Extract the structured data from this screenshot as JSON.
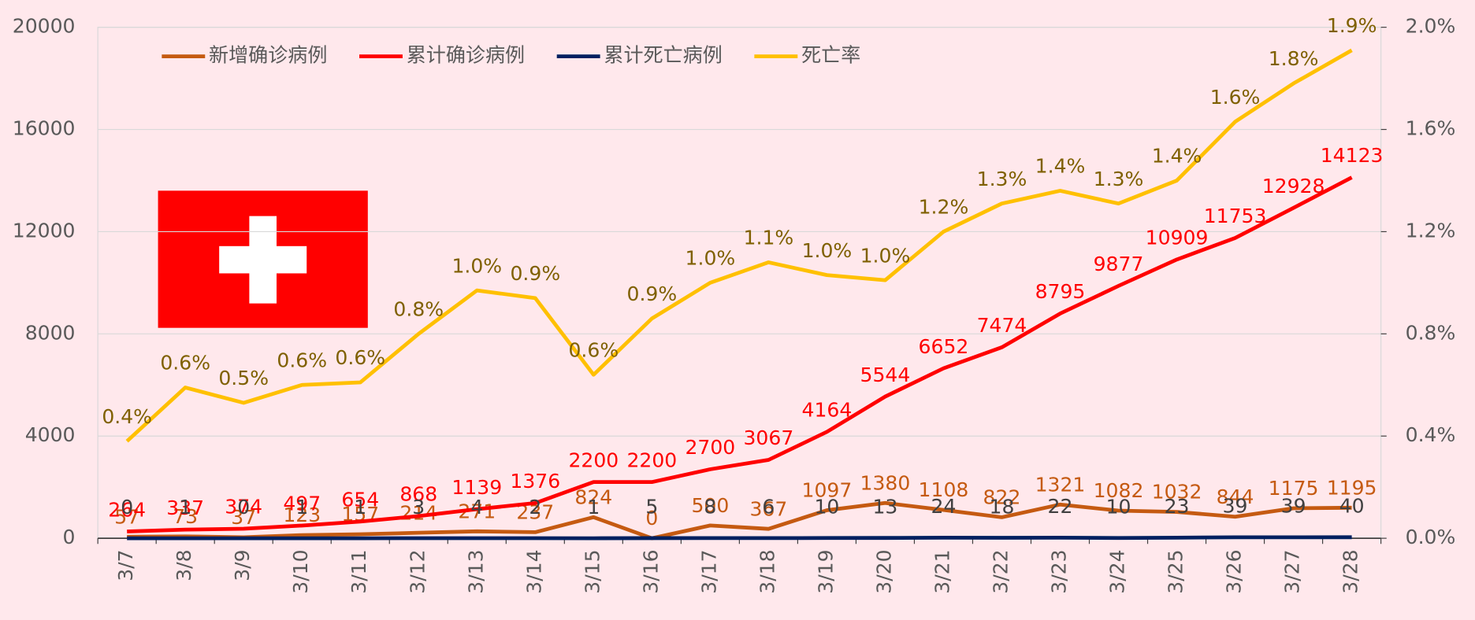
{
  "chart_data": {
    "type": "line",
    "categories": [
      "3/7",
      "3/8",
      "3/9",
      "3/10",
      "3/11",
      "3/12",
      "3/13",
      "3/14",
      "3/15",
      "3/16",
      "3/17",
      "3/18",
      "3/19",
      "3/20",
      "3/21",
      "3/22",
      "3/23",
      "3/24",
      "3/25",
      "3/26",
      "3/27",
      "3/28"
    ],
    "series": [
      {
        "name": "新增确诊病例",
        "color": "#c55a11",
        "label_color": "#c55a11",
        "values": [
          57,
          73,
          37,
          123,
          157,
          214,
          271,
          237,
          824,
          0,
          500,
          367,
          1097,
          1380,
          1108,
          822,
          1321,
          1082,
          1032,
          844,
          1175,
          1195
        ]
      },
      {
        "name": "累计确诊病例",
        "color": "#ff0000",
        "label_color": "#ff0000",
        "values": [
          264,
          337,
          374,
          497,
          654,
          868,
          1139,
          1376,
          2200,
          2200,
          2700,
          3067,
          4164,
          5544,
          6652,
          7474,
          8795,
          9877,
          10909,
          11753,
          12928,
          14123
        ]
      },
      {
        "name": "累计死亡病例",
        "color": "#002060",
        "label_color": "#404040",
        "values": [
          0,
          1,
          0,
          1,
          1,
          3,
          4,
          2,
          1,
          5,
          8,
          6,
          10,
          13,
          24,
          18,
          22,
          10,
          23,
          39,
          39,
          40
        ]
      },
      {
        "name": "死亡率",
        "color": "#ffc000",
        "label_color": "#7f6000",
        "axis": "y2",
        "values": [
          0.38,
          0.59,
          0.53,
          0.6,
          0.61,
          0.8,
          0.97,
          0.94,
          0.64,
          0.86,
          1.0,
          1.08,
          1.03,
          1.01,
          1.2,
          1.31,
          1.36,
          1.31,
          1.4,
          1.63,
          1.78,
          1.91
        ],
        "value_labels": [
          "0.4%",
          "0.6%",
          "0.5%",
          "0.6%",
          "0.6%",
          "0.8%",
          "1.0%",
          "0.9%",
          "0.6%",
          "0.9%",
          "1.0%",
          "1.1%",
          "1.0%",
          "1.0%",
          "1.2%",
          "1.3%",
          "1.4%",
          "1.3%",
          "1.4%",
          "1.6%",
          "1.8%",
          "1.9%"
        ]
      }
    ],
    "ylim": [
      0,
      20000
    ],
    "yticks": [
      0,
      4000,
      8000,
      12000,
      16000,
      20000
    ],
    "y2lim": [
      0,
      2.0
    ],
    "y2ticks": [
      {
        "value": 0,
        "label": "0.0%"
      },
      {
        "value": 0.4,
        "label": "0.4%"
      },
      {
        "value": 0.8,
        "label": "0.8%"
      },
      {
        "value": 1.2,
        "label": "1.2%"
      },
      {
        "value": 1.6,
        "label": "1.6%"
      },
      {
        "value": 2.0,
        "label": "2.0%"
      }
    ],
    "grid": true,
    "legend": "top"
  }
}
